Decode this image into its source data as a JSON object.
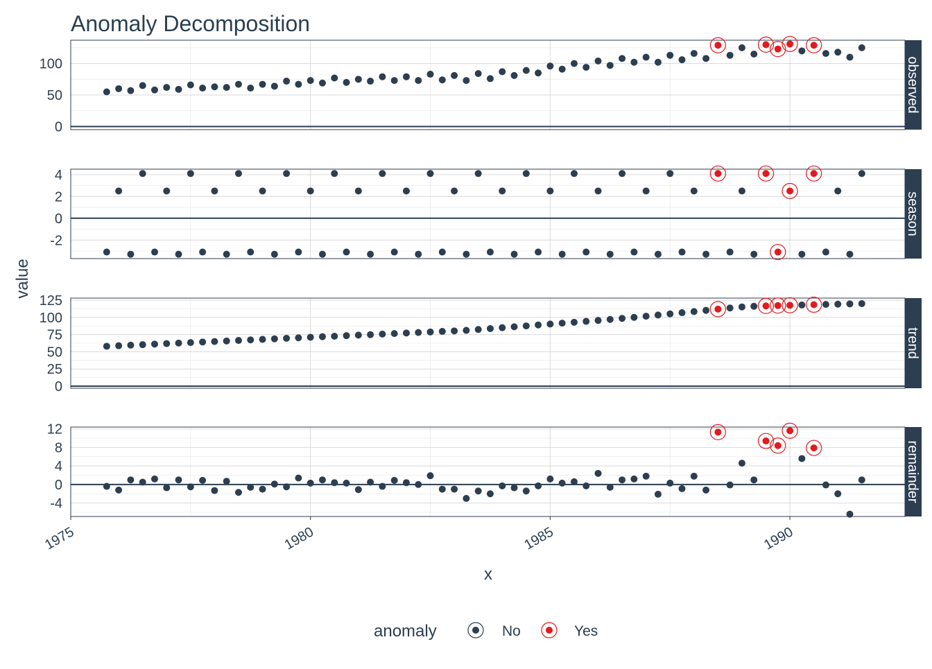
{
  "chart_data": {
    "type": "scatter",
    "title": "Anomaly Decomposition",
    "xlabel": "x",
    "ylabel": "value",
    "xlim": [
      1975,
      1992.4
    ],
    "x_ticks": [
      1975,
      1980,
      1985,
      1990
    ],
    "x_tick_labels": [
      "1975",
      "1980",
      "1985",
      "1990"
    ],
    "grid": true,
    "legend": {
      "title": "anomaly",
      "position": "bottom",
      "entries": [
        {
          "label": "No",
          "color": "#2c3e50"
        },
        {
          "label": "Yes",
          "color": "#e31a1c"
        }
      ]
    },
    "colors": {
      "normal": "#2c3e50",
      "anomaly": "#e31a1c",
      "strip": "#2c3e50",
      "grid": "#d9d9d9",
      "text": "#2c3e50"
    },
    "x_start": 1975.75,
    "x_step": 0.25,
    "facets": [
      {
        "label": "observed",
        "ylim": [
          -5,
          137
        ],
        "y_ticks": [
          0,
          50,
          100
        ],
        "y_tick_labels": [
          "0",
          "50",
          "100"
        ],
        "values": [
          55,
          60,
          57,
          65,
          58,
          62,
          59,
          66,
          61,
          63,
          62,
          67,
          61,
          67,
          64,
          72,
          67,
          73,
          69,
          77,
          70,
          75,
          72,
          79,
          73,
          79,
          73,
          83,
          74,
          81,
          73,
          84,
          76,
          87,
          81,
          89,
          85,
          96,
          91,
          100,
          94,
          104,
          97,
          108,
          102,
          110,
          102,
          113,
          106,
          116,
          108,
          129,
          113,
          125,
          115,
          130,
          123,
          131,
          120,
          129,
          116,
          118,
          110,
          125
        ],
        "anomalies": [
          51,
          55,
          56,
          57,
          59
        ]
      },
      {
        "label": "season",
        "ylim": [
          -3.7,
          4.5
        ],
        "y_ticks": [
          -2,
          0,
          2,
          4
        ],
        "y_tick_labels": [
          "-2",
          "0",
          "2",
          "4"
        ],
        "values": [
          -3.1,
          2.5,
          -3.3,
          4.1,
          -3.1,
          2.5,
          -3.3,
          4.1,
          -3.1,
          2.5,
          -3.3,
          4.1,
          -3.1,
          2.5,
          -3.3,
          4.1,
          -3.1,
          2.5,
          -3.3,
          4.1,
          -3.1,
          2.5,
          -3.3,
          4.1,
          -3.1,
          2.5,
          -3.3,
          4.1,
          -3.1,
          2.5,
          -3.3,
          4.1,
          -3.1,
          2.5,
          -3.3,
          4.1,
          -3.1,
          2.5,
          -3.3,
          4.1,
          -3.1,
          2.5,
          -3.3,
          4.1,
          -3.1,
          2.5,
          -3.3,
          4.1,
          -3.1,
          2.5,
          -3.3,
          4.1,
          -3.1,
          2.5,
          -3.3,
          4.1,
          -3.1,
          2.5,
          -3.3,
          4.1,
          -3.1,
          2.5,
          -3.3,
          4.1
        ],
        "anomalies": [
          51,
          55,
          56,
          57,
          59
        ]
      },
      {
        "label": "trend",
        "ylim": [
          -3,
          128
        ],
        "y_ticks": [
          0,
          25,
          50,
          75,
          100,
          125
        ],
        "y_tick_labels": [
          "0",
          "25",
          "50",
          "75",
          "100",
          "125"
        ],
        "values": [
          58,
          58.8,
          59.6,
          60.3,
          61.1,
          61.9,
          62.6,
          63.4,
          64.2,
          64.9,
          65.7,
          66.5,
          67.3,
          68,
          68.8,
          69.6,
          70.3,
          71.1,
          71.9,
          72.6,
          73.4,
          74.2,
          74.9,
          75.7,
          76.5,
          77.3,
          78,
          78.8,
          79.6,
          80.3,
          81.1,
          82.4,
          83.7,
          85,
          86.3,
          87.6,
          89,
          90.3,
          91.6,
          92.9,
          94.2,
          95.6,
          97,
          98.5,
          100,
          101.7,
          103.4,
          105.1,
          106.8,
          108.5,
          110.2,
          112,
          113.7,
          115.2,
          116.1,
          116.7,
          117.2,
          117.6,
          118,
          118.4,
          118.8,
          119.2,
          119.6,
          120
        ],
        "anomalies": [
          51,
          55,
          56,
          57,
          59
        ]
      },
      {
        "label": "remainder",
        "ylim": [
          -6.9,
          12.4
        ],
        "y_ticks": [
          -4,
          0,
          4,
          8,
          12
        ],
        "y_tick_labels": [
          "-4",
          "0",
          "4",
          "8",
          "12"
        ],
        "values": [
          -0.4,
          -1.2,
          1.0,
          0.5,
          1.2,
          -0.7,
          1.0,
          -0.5,
          0.9,
          -1.3,
          0.7,
          -1.7,
          -0.6,
          -1.0,
          0.1,
          -0.5,
          1.4,
          0.3,
          1.0,
          0.4,
          0.3,
          -1.1,
          0.5,
          -0.4,
          0.9,
          0.4,
          0.0,
          1.9,
          -1.0,
          -1.0,
          -3.0,
          -1.4,
          -2.0,
          -0.3,
          -0.7,
          -1.4,
          -0.3,
          1.2,
          0.3,
          0.6,
          -0.3,
          2.4,
          -0.6,
          1.0,
          1.2,
          1.8,
          -2.1,
          0.3,
          -0.9,
          1.8,
          -1.2,
          11.3,
          -0.1,
          4.6,
          1.0,
          9.4,
          8.4,
          11.6,
          5.6,
          7.9,
          -0.1,
          -2.0,
          -6.4,
          1.0
        ],
        "anomalies": [
          51,
          55,
          56,
          57,
          59
        ]
      }
    ]
  }
}
